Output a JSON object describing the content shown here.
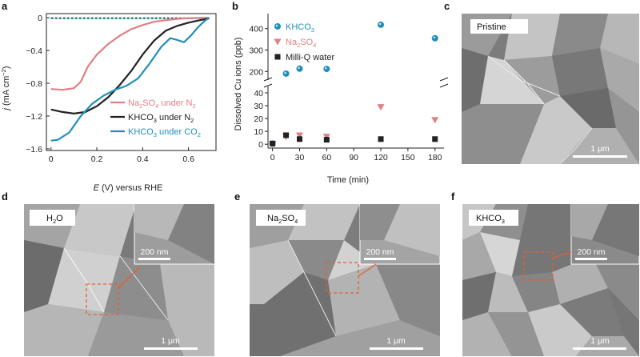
{
  "figure": {
    "panel_labels": [
      "a",
      "b",
      "c",
      "d",
      "e",
      "f"
    ],
    "colors": {
      "na2so4": "#e07f84",
      "water": "#222222",
      "khco3": "#1f8fb8",
      "arrow": "#e2602f",
      "sem_bg": "#8c8c8c"
    }
  },
  "chart_data": [
    {
      "type": "line",
      "panel": "a",
      "xlabel_prefix": "E",
      "xlabel": " (V) versus RHE",
      "ylabel_prefix": "j",
      "ylabel": " (mA cm",
      "ylabel_sup": "−2",
      "ylabel_suffix": ")",
      "xlim": [
        -0.02,
        0.72
      ],
      "ylim": [
        -1.62,
        0.05
      ],
      "xticks": [
        "0",
        "0.2",
        "0.4",
        "0.6"
      ],
      "xtick_values": [
        0,
        0.2,
        0.4,
        0.6
      ],
      "yticks": [
        "0",
        "−0.4",
        "−0.8",
        "−1.2",
        "−1.6"
      ],
      "ytick_values": [
        0,
        -0.4,
        -0.8,
        -1.2,
        -1.6
      ],
      "series": [
        {
          "name": "Na2SO4 under N2",
          "legend_main": "Na",
          "legend_sub1": "2",
          "legend_mid": "SO",
          "legend_sub2": "4",
          "legend_rest": " under N",
          "legend_sub3": "2",
          "color": "#e07f84",
          "x": [
            0.0,
            0.05,
            0.1,
            0.13,
            0.16,
            0.2,
            0.25,
            0.3,
            0.35,
            0.4,
            0.45,
            0.5,
            0.55,
            0.6,
            0.65,
            0.69
          ],
          "y": [
            -0.87,
            -0.88,
            -0.86,
            -0.78,
            -0.6,
            -0.45,
            -0.32,
            -0.22,
            -0.14,
            -0.09,
            -0.05,
            -0.03,
            -0.015,
            -0.006,
            -0.002,
            0.0
          ]
        },
        {
          "name": "KHCO3 under N2",
          "legend_main": "KHCO",
          "legend_sub1": "3",
          "legend_rest": " under N",
          "legend_sub3": "2",
          "color": "#222222",
          "x": [
            0.0,
            0.05,
            0.1,
            0.15,
            0.2,
            0.25,
            0.3,
            0.35,
            0.4,
            0.45,
            0.5,
            0.55,
            0.6,
            0.65,
            0.69
          ],
          "y": [
            -1.12,
            -1.15,
            -1.17,
            -1.15,
            -1.08,
            -0.97,
            -0.82,
            -0.65,
            -0.45,
            -0.28,
            -0.16,
            -0.1,
            -0.06,
            -0.03,
            -0.01
          ]
        },
        {
          "name": "KHCO3 under CO2",
          "legend_main": "KHCO",
          "legend_sub1": "3",
          "legend_rest": " under CO",
          "legend_sub3": "2",
          "color": "#1f8fb8",
          "x": [
            0.0,
            0.03,
            0.08,
            0.13,
            0.18,
            0.23,
            0.28,
            0.33,
            0.38,
            0.43,
            0.48,
            0.52,
            0.55,
            0.58,
            0.61,
            0.64,
            0.67,
            0.69
          ],
          "y": [
            -1.5,
            -1.49,
            -1.4,
            -1.2,
            -1.05,
            -0.95,
            -0.88,
            -0.83,
            -0.74,
            -0.56,
            -0.36,
            -0.25,
            -0.27,
            -0.3,
            -0.22,
            -0.12,
            -0.04,
            0.0
          ]
        }
      ]
    },
    {
      "type": "scatter",
      "panel": "b",
      "xlabel": "Time (min)",
      "ylabel": "Dissolved Cu ions (ppb)",
      "xlim": [
        -5,
        190
      ],
      "ylim_lower": [
        -3,
        45
      ],
      "ylim_upper": [
        160,
        470
      ],
      "xticks": [
        "0",
        "30",
        "60",
        "90",
        "120",
        "150",
        "180"
      ],
      "xtick_values": [
        0,
        30,
        60,
        90,
        120,
        150,
        180
      ],
      "yticks_upper": [
        "400",
        "300",
        "200"
      ],
      "ytick_values_upper": [
        400,
        300,
        200
      ],
      "yticks_lower": [
        "40",
        "30",
        "20",
        "10",
        "0"
      ],
      "ytick_values_lower": [
        40,
        30,
        20,
        10,
        0
      ],
      "series": [
        {
          "name": "KHCO3",
          "legend_main": "KHCO",
          "legend_sub1": "3",
          "color": "#1f8fb8",
          "marker": "circle",
          "x": [
            0,
            15,
            30,
            60,
            120,
            180
          ],
          "y": [
            0.5,
            190,
            213,
            212,
            418,
            355
          ]
        },
        {
          "name": "Na2SO4",
          "legend_main": "Na",
          "legend_sub1": "2",
          "legend_mid": "SO",
          "legend_sub2": "4",
          "color": "#e07f84",
          "marker": "triangle",
          "x": [
            0,
            15,
            30,
            60,
            120,
            180
          ],
          "y": [
            0.5,
            6,
            7,
            6,
            29,
            19
          ]
        },
        {
          "name": "Milli-Q water",
          "legend_main": "Milli-Q water",
          "color": "#222222",
          "marker": "square",
          "x": [
            0,
            15,
            30,
            60,
            120,
            180
          ],
          "y": [
            0.5,
            7,
            4,
            3.5,
            4,
            4
          ]
        }
      ]
    }
  ],
  "sem_panels": [
    {
      "id": "c",
      "label_main": "Pristine",
      "label_sub": "",
      "scale": "1 μm",
      "has_inset": false
    },
    {
      "id": "d",
      "label_main": "H",
      "label_sub": "2",
      "label_rest": "O",
      "scale": "1 μm",
      "inset_scale": "200 nm",
      "has_inset": true
    },
    {
      "id": "e",
      "label_main": "Na",
      "label_sub": "2",
      "label_rest": "SO",
      "label_sub2": "4",
      "scale": "1 μm",
      "inset_scale": "200 nm",
      "has_inset": true
    },
    {
      "id": "f",
      "label_main": "KHCO",
      "label_sub": "3",
      "label_rest": "",
      "scale": "1 μm",
      "inset_scale": "200 nm",
      "has_inset": true
    }
  ]
}
